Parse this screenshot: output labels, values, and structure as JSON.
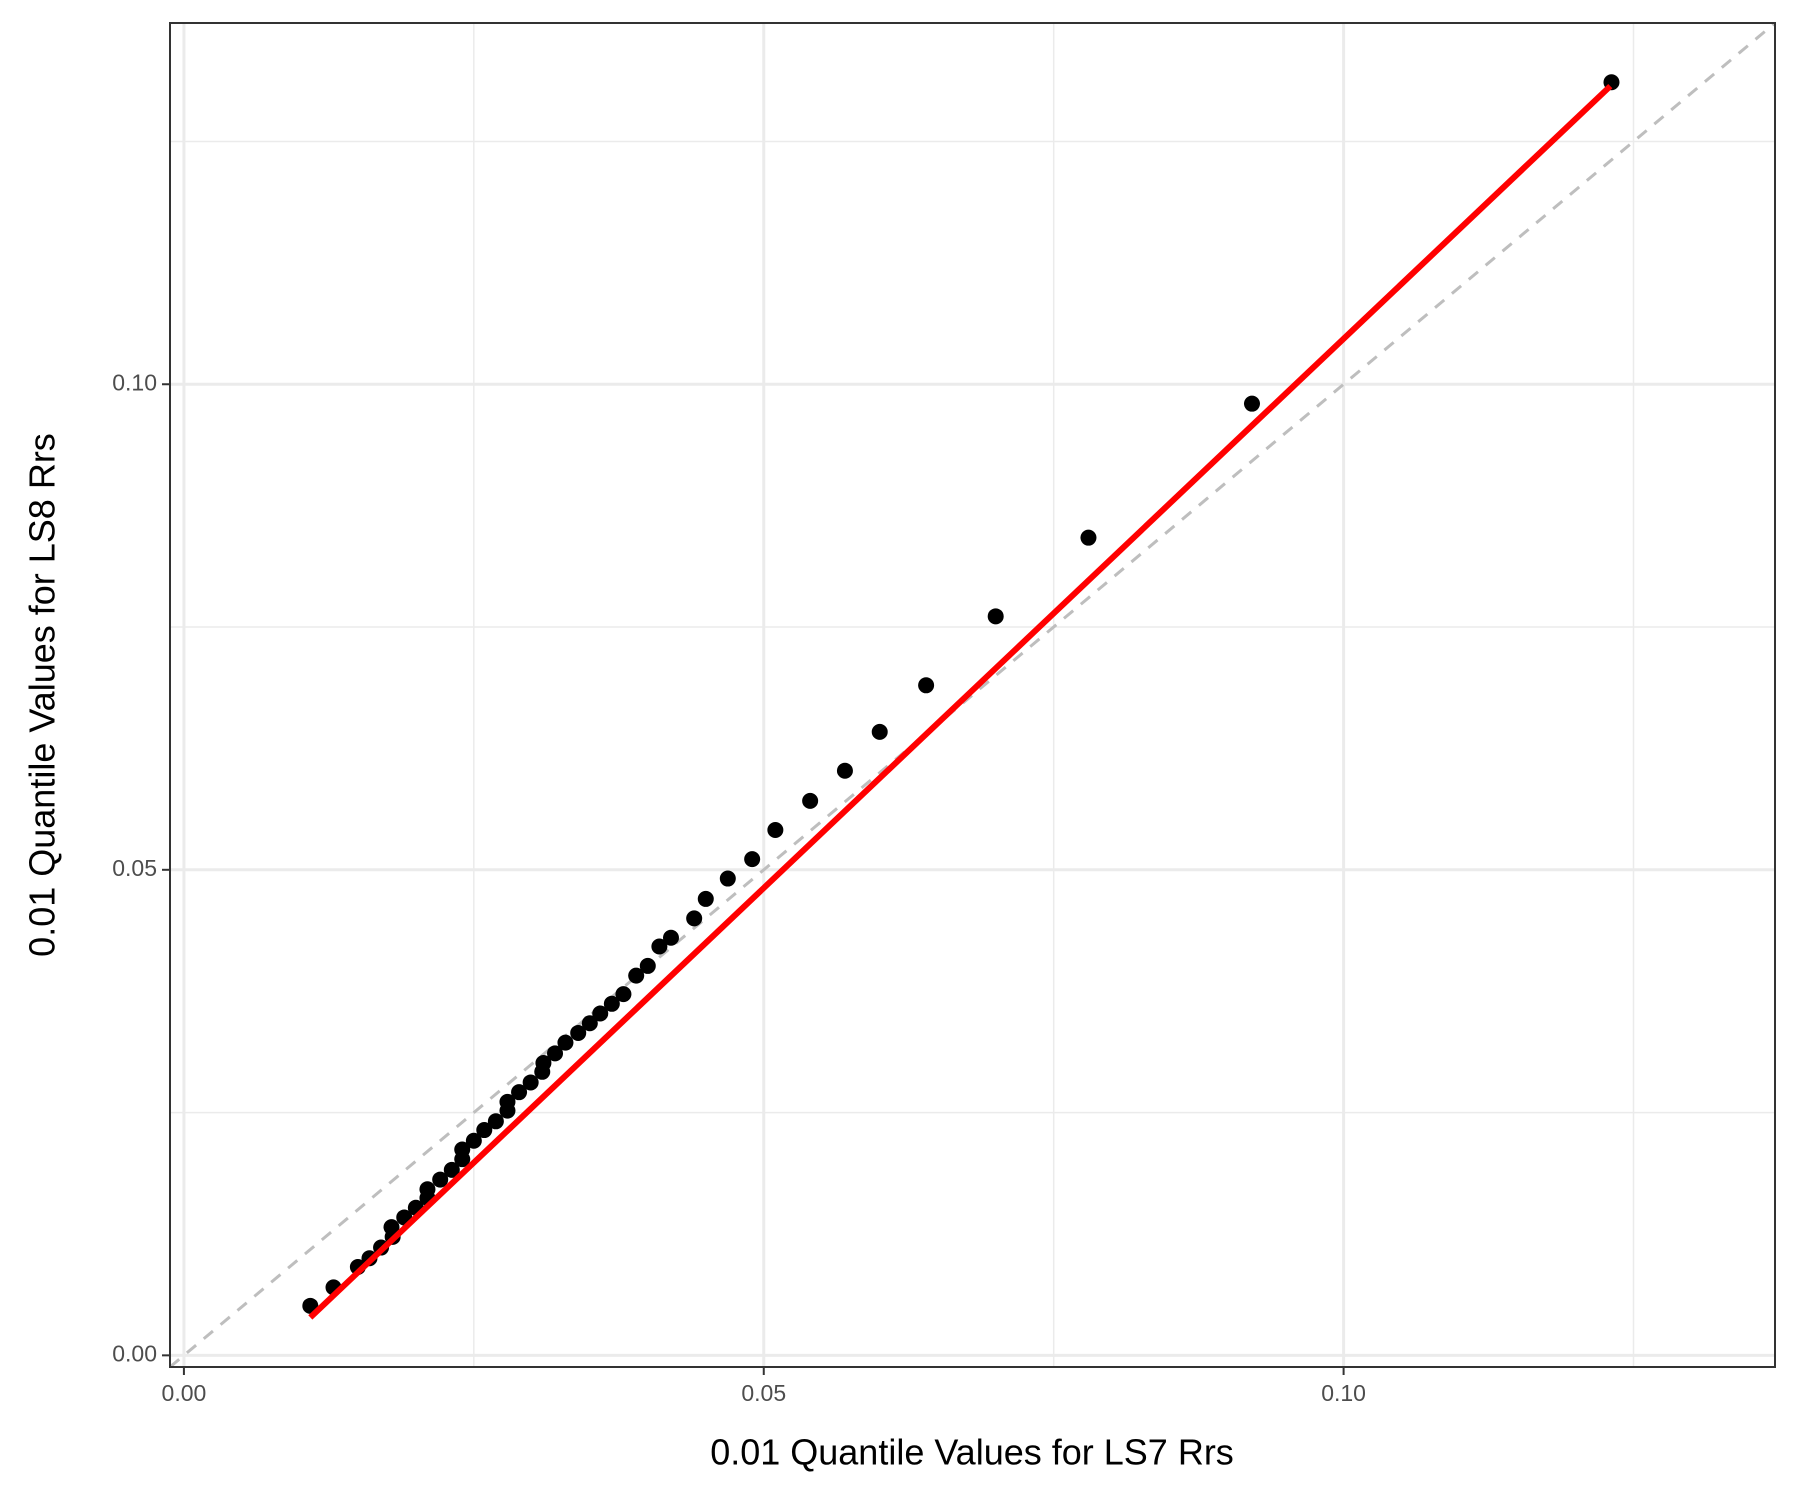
{
  "chart_data": {
    "type": "scatter",
    "x_label": "0.01 Quantile Values for LS7 Rrs",
    "y_label": "0.01 Quantile Values for LS8 Rrs",
    "xlim": [
      -0.0012,
      0.1372
    ],
    "ylim": [
      -0.0012,
      0.1372
    ],
    "xticks": [
      {
        "value": 0,
        "label": "0.00"
      },
      {
        "value": 0.05,
        "label": "0.05"
      },
      {
        "value": 0.1,
        "label": "0.10"
      }
    ],
    "yticks": [
      {
        "value": 0,
        "label": "0.00"
      },
      {
        "value": 0.05,
        "label": "0.05"
      },
      {
        "value": 0.1,
        "label": "0.10"
      }
    ],
    "x_minor_ticks": [
      0.025,
      0.075,
      0.125
    ],
    "y_minor_ticks": [
      0.025,
      0.075,
      0.125
    ],
    "grid": true,
    "series": [
      {
        "color": "#000000",
        "x": [
          0.0109,
          0.0129,
          0.015,
          0.016,
          0.017,
          0.018,
          0.0179,
          0.019,
          0.02,
          0.021,
          0.021,
          0.0221,
          0.0231,
          0.024,
          0.024,
          0.025,
          0.0259,
          0.0269,
          0.0279,
          0.0279,
          0.0289,
          0.0299,
          0.0309,
          0.031,
          0.032,
          0.0329,
          0.034,
          0.035,
          0.0359,
          0.0369,
          0.0379,
          0.039,
          0.04,
          0.041,
          0.042,
          0.044,
          0.045,
          0.0469,
          0.049,
          0.051,
          0.054,
          0.057,
          0.06,
          0.064,
          0.07,
          0.078,
          0.0921,
          0.1231
        ],
        "values": [
          0.0051,
          0.007,
          0.0091,
          0.01,
          0.0111,
          0.0122,
          0.0132,
          0.0142,
          0.0152,
          0.0162,
          0.0171,
          0.0181,
          0.0191,
          0.0202,
          0.0212,
          0.0221,
          0.0232,
          0.0241,
          0.0252,
          0.0261,
          0.0271,
          0.0281,
          0.0292,
          0.0301,
          0.0311,
          0.0322,
          0.0332,
          0.0342,
          0.0352,
          0.0362,
          0.0372,
          0.0391,
          0.0401,
          0.0421,
          0.043,
          0.045,
          0.047,
          0.0491,
          0.0511,
          0.0541,
          0.0571,
          0.0602,
          0.0642,
          0.069,
          0.0761,
          0.0842,
          0.098,
          0.1311
        ]
      }
    ],
    "fit_line": {
      "color": "#ff0000",
      "x": [
        0.0109,
        0.123
      ],
      "values": [
        0.0039,
        0.1307
      ]
    },
    "reference_line": {
      "color": "#bebebe",
      "x": [
        -0.0012,
        0.1372
      ],
      "values": [
        -0.0012,
        0.1372
      ]
    }
  }
}
